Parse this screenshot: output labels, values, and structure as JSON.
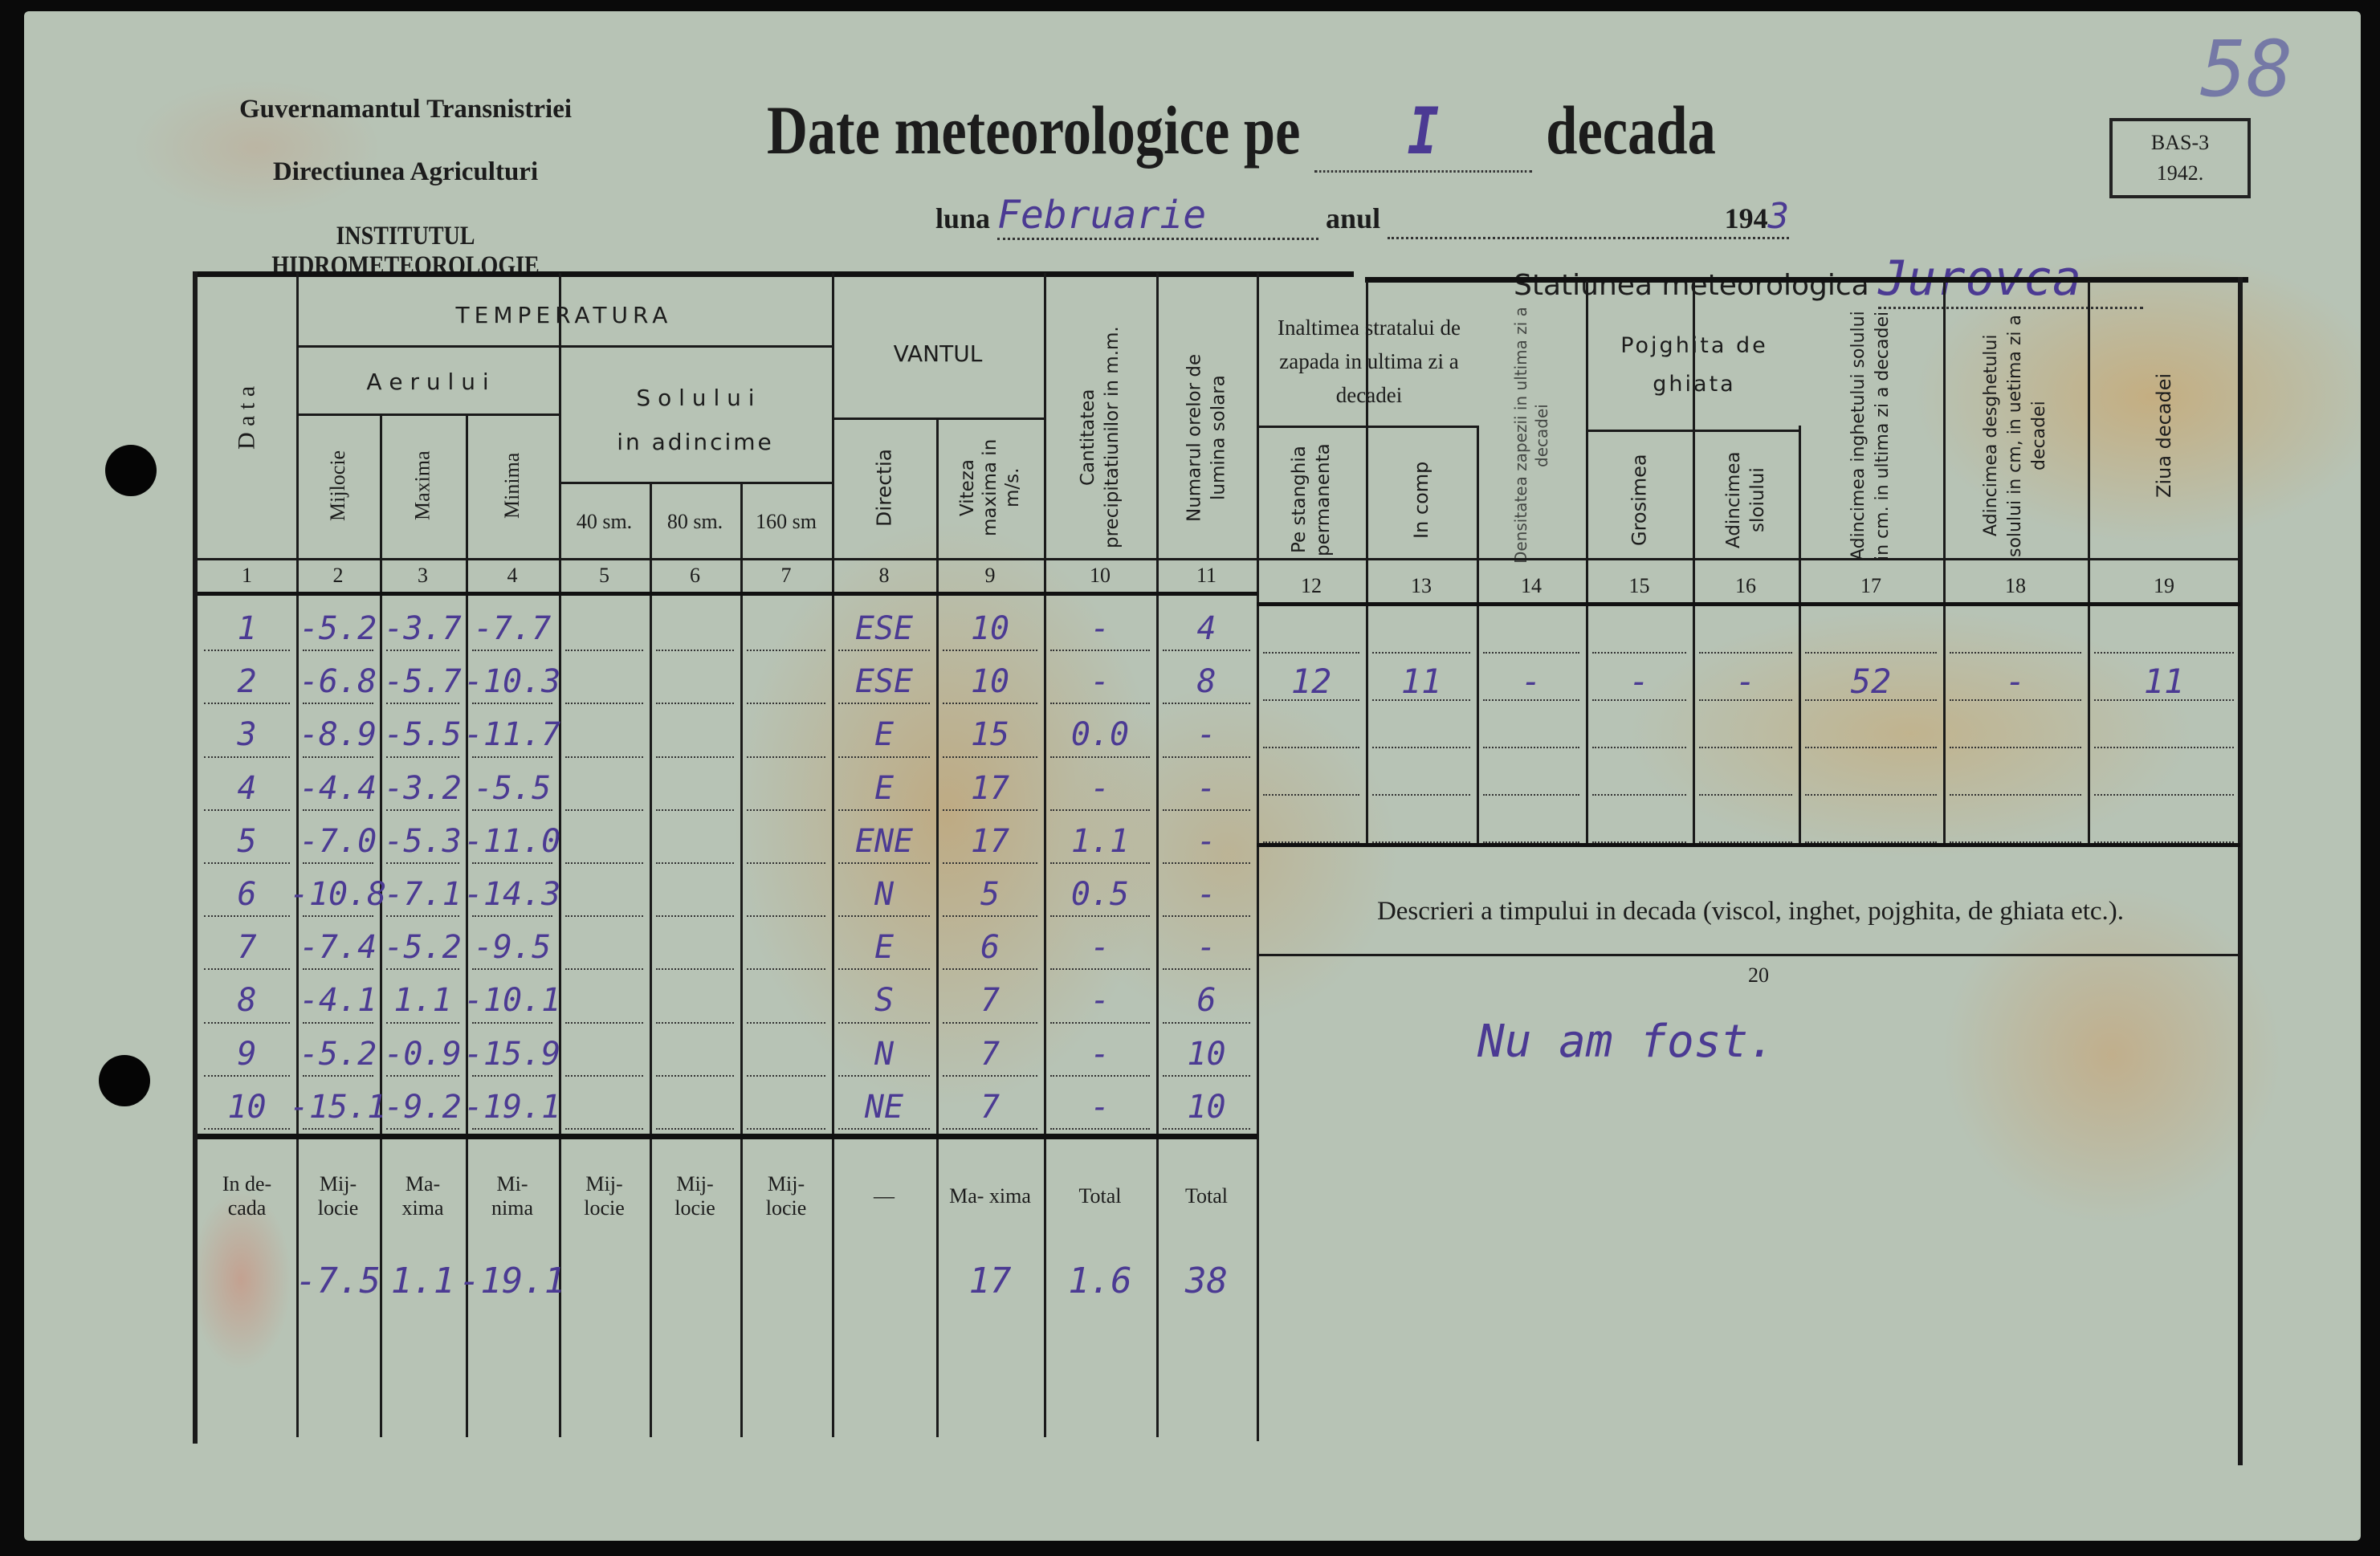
{
  "header": {
    "org_line1": "Guvernamantul Transnistriei",
    "org_line2": "Directiunea Agriculturi",
    "org_line3": "INSTITUTUL HIDROMETEOROLOGIE",
    "title_prefix": "Date meteorologice pe",
    "decade_value": "I",
    "title_suffix": "decada",
    "month_label": "luna",
    "month_value": "Februarie",
    "year_label": "anul",
    "year_printed": "194",
    "year_handwritten": "3",
    "form_code": "BAS-3",
    "form_year": "1942.",
    "page_number": "58",
    "station_label": "Statiunea meteorologica",
    "station_value": "Jurovca"
  },
  "table_headers": {
    "data": "D a t a",
    "temperatura": "TEMPERATURA",
    "aerului": "A e r u l u i",
    "solului": "S o l u l u i",
    "in_adincime": "in adincime",
    "mijlocie": "Mijlocie",
    "maxima": "Maxima",
    "minima": "Minima",
    "sm40": "40 sm.",
    "sm80": "80 sm.",
    "sm160": "160 sm",
    "vantul": "VANTUL",
    "directia": "Directia",
    "viteza": "Viteza maxima in m/s.",
    "precip": "Cantitatea precipitatiunilor in m.m.",
    "ore_solara": "Numarul orelor de lumina solara",
    "zapada_group": "Inaltimea stratalui de zapada in ultima zi a decadei",
    "pe_stanghia": "Pe stanghia permanenta",
    "in_comp": "In comp",
    "densitatea": "Densitatea zapezii in ultima zi a decadei",
    "pojghita": "Pojghita de ghiata",
    "grosimea": "Grosimea",
    "adincimea_sloiului": "Adincimea sloiului",
    "adincimea_inghet": "Adincimea inghetului solului in cm. in ultima zi a decadei",
    "adincimea_desghet": "Adincimea desghetului solului in cm, in uetima zi a decadei",
    "ziua_decadei": "Ziua decadei",
    "column_numbers": [
      "1",
      "2",
      "3",
      "4",
      "5",
      "6",
      "7",
      "8",
      "9",
      "10",
      "11",
      "12",
      "13",
      "14",
      "15",
      "16",
      "17",
      "18",
      "19"
    ]
  },
  "rows": [
    {
      "day": "1",
      "mij": "-5.2",
      "max": "-3.7",
      "min": "-7.7",
      "dir": "ESE",
      "vit": "10",
      "prec": "-",
      "sol": "4"
    },
    {
      "day": "2",
      "mij": "-6.8",
      "max": "-5.7",
      "min": "-10.3",
      "dir": "ESE",
      "vit": "10",
      "prec": "-",
      "sol": "8"
    },
    {
      "day": "3",
      "mij": "-8.9",
      "max": "-5.5",
      "min": "-11.7",
      "dir": "E",
      "vit": "15",
      "prec": "0.0",
      "sol": "-"
    },
    {
      "day": "4",
      "mij": "-4.4",
      "max": "-3.2",
      "min": "-5.5",
      "dir": "E",
      "vit": "17",
      "prec": "-",
      "sol": "-"
    },
    {
      "day": "5",
      "mij": "-7.0",
      "max": "-5.3",
      "min": "-11.0",
      "dir": "ENE",
      "vit": "17",
      "prec": "1.1",
      "sol": "-"
    },
    {
      "day": "6",
      "mij": "-10.8",
      "max": "-7.1",
      "min": "-14.3",
      "dir": "N",
      "vit": "5",
      "prec": "0.5",
      "sol": "-"
    },
    {
      "day": "7",
      "mij": "-7.4",
      "max": "-5.2",
      "min": "-9.5",
      "dir": "E",
      "vit": "6",
      "prec": "-",
      "sol": "-"
    },
    {
      "day": "8",
      "mij": "-4.1",
      "max": "1.1",
      "min": "-10.1",
      "dir": "S",
      "vit": "7",
      "prec": "-",
      "sol": "6"
    },
    {
      "day": "9",
      "mij": "-5.2",
      "max": "-0.9",
      "min": "-15.9",
      "dir": "N",
      "vit": "7",
      "prec": "-",
      "sol": "10"
    },
    {
      "day": "10",
      "mij": "-15.1",
      "max": "-9.2",
      "min": "-19.1",
      "dir": "NE",
      "vit": "7",
      "prec": "-",
      "sol": "10"
    }
  ],
  "snow_row": {
    "pe_stanghia": "12",
    "in_comp": "11",
    "densitatea": "-",
    "grosimea": "-",
    "adincimea_sloiului": "-",
    "adincimea_inghet": "52",
    "adincimea_desghet": "-",
    "ziua": "11"
  },
  "summary": {
    "label": "In de- cada",
    "headers": [
      "Mij- locie",
      "Ma- xima",
      "Mi- nima",
      "Mij- locie",
      "Mij- locie",
      "Mij- locie",
      "—",
      "Ma- xima",
      "Total",
      "Total"
    ],
    "values": [
      "-7.5",
      "1.1",
      "-19.1",
      "",
      "",
      "",
      "",
      "17",
      "1.6",
      "38"
    ]
  },
  "description": {
    "title": "Descrieri a timpului in decada (viscol, inghet, pojghita, de ghiata etc.).",
    "number": "20",
    "text": "Nu am fost."
  }
}
